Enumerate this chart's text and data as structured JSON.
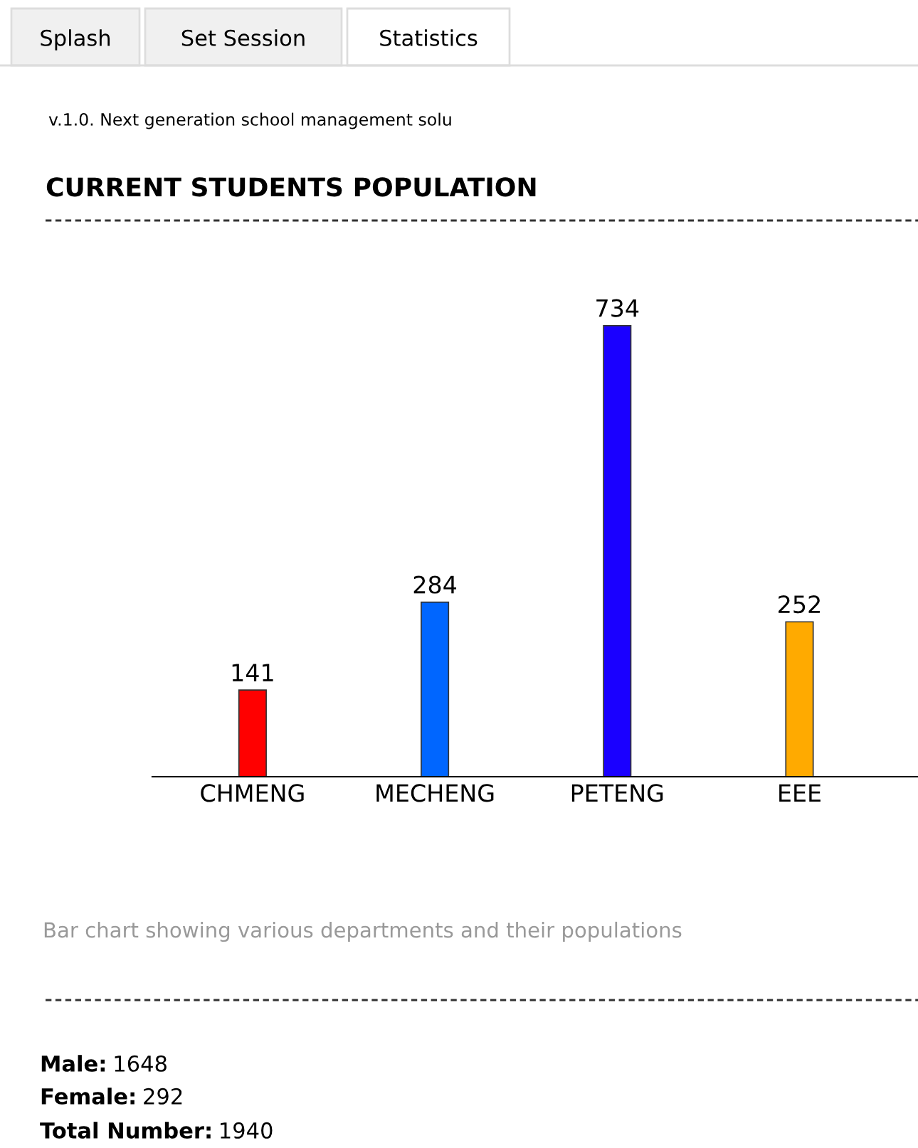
{
  "chart_data": {
    "type": "bar",
    "title": "CURRENT STUDENTS POPULATION",
    "categories": [
      "CHMENG",
      "MECHENG",
      "PETENG",
      "EEE"
    ],
    "values": [
      141,
      284,
      734,
      252
    ],
    "colors": [
      "#ff0000",
      "#0066ff",
      "#1a00ff",
      "#ffaa00"
    ],
    "data_labels": true,
    "grid": false,
    "legend": false,
    "annotations": [
      "Splash",
      "Set Session",
      "Statistics",
      "v.1.0. Next generation school management solu",
      "Bar chart showing various departments and their populations",
      "Male: 1648",
      "Female: 292",
      "Total Number: 1940"
    ]
  }
}
